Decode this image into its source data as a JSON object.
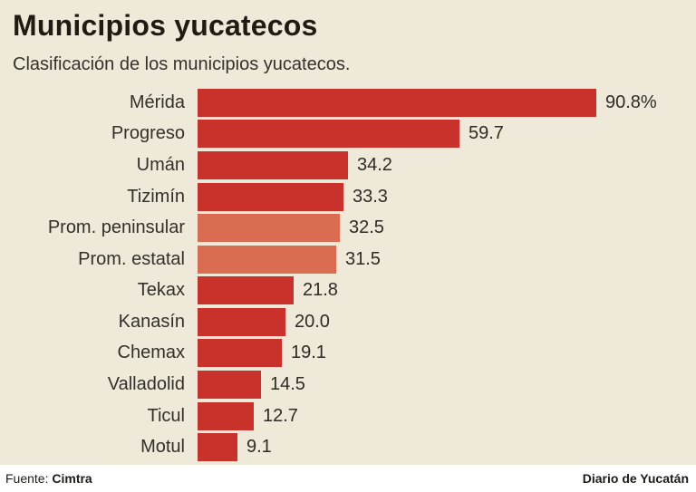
{
  "header": {
    "title": "Municipios yucatecos",
    "subtitle": "Clasificación de los municipios yucatecos."
  },
  "footer": {
    "source_label": "Fuente:",
    "source_value": "Cimtra",
    "credit": "Diario de Yucatán"
  },
  "chart_data": {
    "type": "bar",
    "orientation": "horizontal",
    "title": "Municipios yucatecos",
    "subtitle": "Clasificación de los municipios yucatecos.",
    "unit": "%",
    "xlim": [
      0,
      100
    ],
    "grid": false,
    "legend": "none",
    "colors": {
      "bar": "#c9312b",
      "bar_light": "#da6c52",
      "background": "#efe9da"
    },
    "rows": [
      {
        "label": "Mérida",
        "value": 90.8,
        "value_label": "90.8%",
        "variant": "normal"
      },
      {
        "label": "Progreso",
        "value": 59.7,
        "value_label": "59.7",
        "variant": "normal"
      },
      {
        "label": "Umán",
        "value": 34.2,
        "value_label": "34.2",
        "variant": "normal"
      },
      {
        "label": "Tizimín",
        "value": 33.3,
        "value_label": "33.3",
        "variant": "normal"
      },
      {
        "label": "Prom. peninsular",
        "value": 32.5,
        "value_label": "32.5",
        "variant": "light"
      },
      {
        "label": "Prom. estatal",
        "value": 31.5,
        "value_label": "31.5",
        "variant": "light"
      },
      {
        "label": "Tekax",
        "value": 21.8,
        "value_label": "21.8",
        "variant": "normal"
      },
      {
        "label": "Kanasín",
        "value": 20.0,
        "value_label": "20.0",
        "variant": "normal"
      },
      {
        "label": "Chemax",
        "value": 19.1,
        "value_label": "19.1",
        "variant": "normal"
      },
      {
        "label": "Valladolid",
        "value": 14.5,
        "value_label": "14.5",
        "variant": "normal"
      },
      {
        "label": "Ticul",
        "value": 12.7,
        "value_label": "12.7",
        "variant": "normal"
      },
      {
        "label": "Motul",
        "value": 9.1,
        "value_label": "9.1",
        "variant": "normal"
      }
    ]
  }
}
